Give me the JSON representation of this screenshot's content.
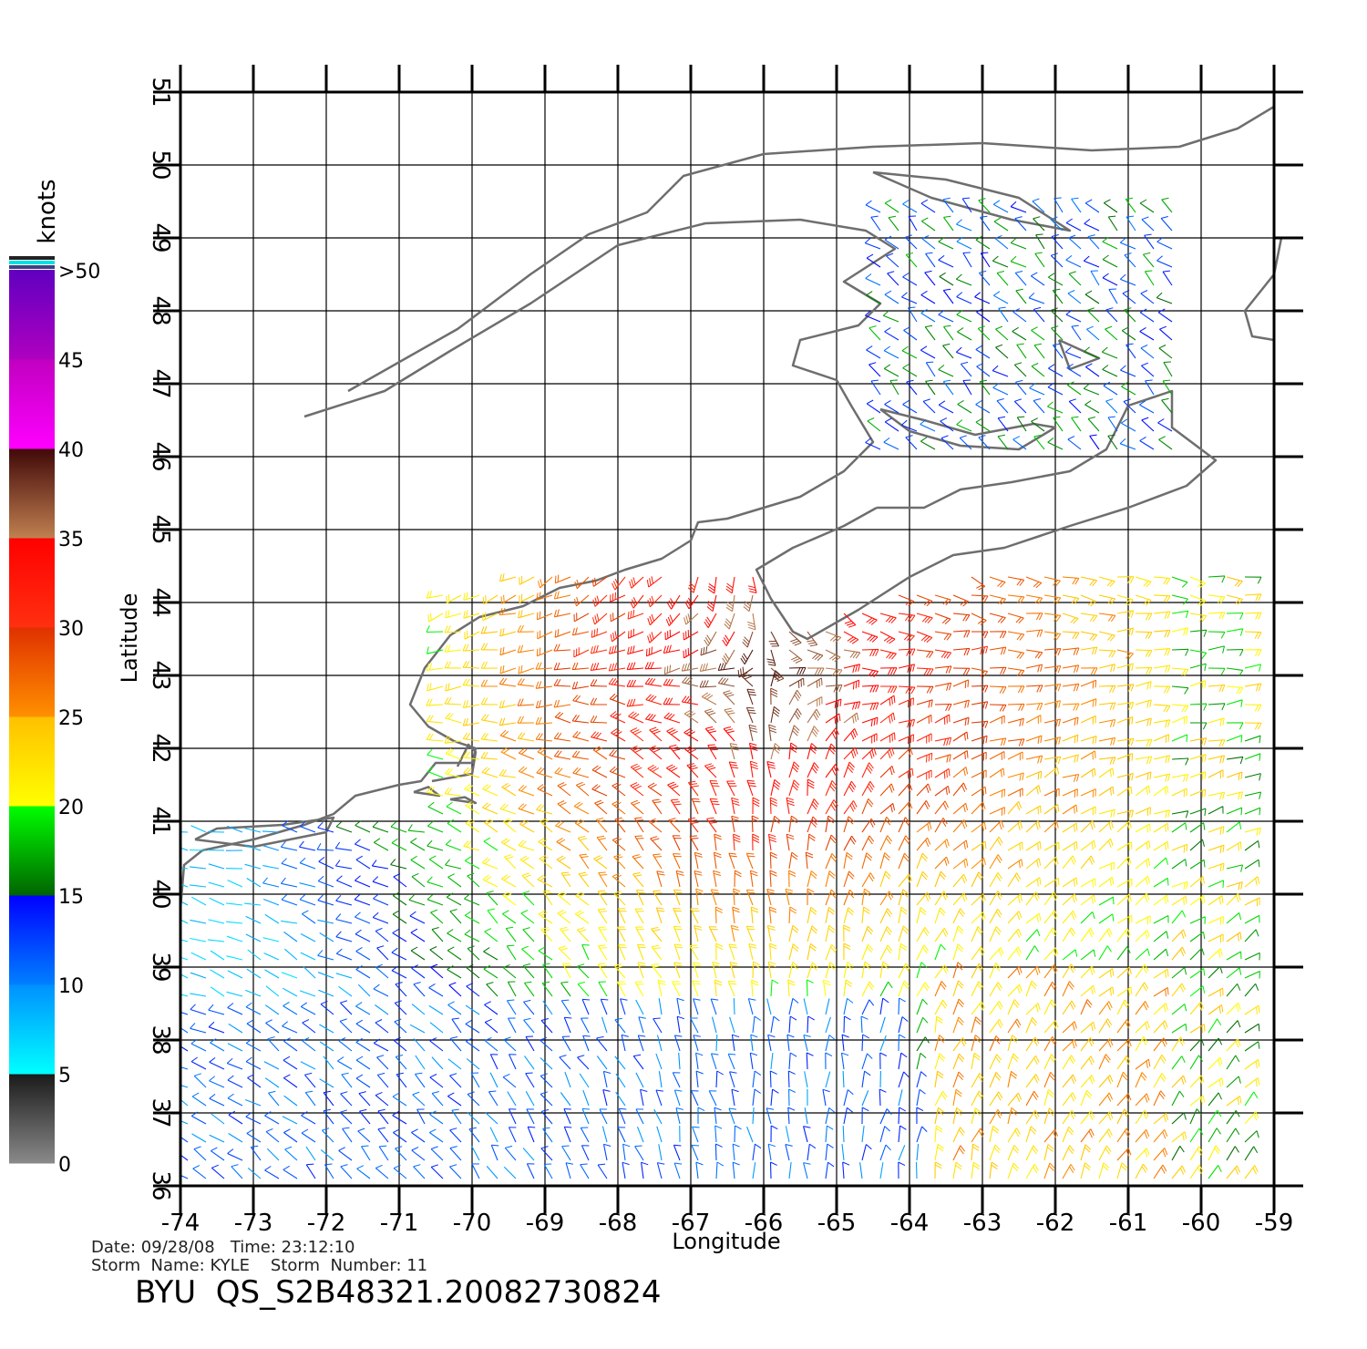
{
  "map": {
    "x_label": "Longitude",
    "y_label": "Latitude",
    "lon_ticks": [
      "-74",
      "-73",
      "-72",
      "-71",
      "-70",
      "-69",
      "-68",
      "-67",
      "-66",
      "-65",
      "-64",
      "-63",
      "-62",
      "-61",
      "-60",
      "-59"
    ],
    "lat_ticks": [
      "36",
      "37",
      "38",
      "39",
      "40",
      "41",
      "42",
      "43",
      "44",
      "45",
      "46",
      "47",
      "48",
      "49",
      "50",
      "51"
    ],
    "lon_range": [
      -74,
      -59
    ],
    "lat_range": [
      36,
      51
    ],
    "grid": true,
    "coastline_color": "#6e6e6e"
  },
  "colorbar": {
    "unit": "knots",
    "labels": [
      "0",
      "5",
      "10",
      "15",
      "20",
      "25",
      "30",
      "35",
      "40",
      "45",
      ">50"
    ],
    "bands": [
      {
        "from": 0,
        "to": 5,
        "colors": [
          "#8a8a8a",
          "#1a1a1a"
        ]
      },
      {
        "from": 5,
        "to": 10,
        "colors": [
          "#00ffff",
          "#0090ff"
        ]
      },
      {
        "from": 10,
        "to": 15,
        "colors": [
          "#0080ff",
          "#0000ff"
        ]
      },
      {
        "from": 15,
        "to": 20,
        "colors": [
          "#006400",
          "#00ff00"
        ]
      },
      {
        "from": 20,
        "to": 25,
        "colors": [
          "#ffff00",
          "#ffc000"
        ]
      },
      {
        "from": 25,
        "to": 30,
        "colors": [
          "#ff9000",
          "#e03000"
        ]
      },
      {
        "from": 30,
        "to": 35,
        "colors": [
          "#ff3010",
          "#ff0000"
        ]
      },
      {
        "from": 35,
        "to": 40,
        "colors": [
          "#c08050",
          "#400808"
        ]
      },
      {
        "from": 40,
        "to": 45,
        "colors": [
          "#ff00ff",
          "#c000c0"
        ]
      },
      {
        "from": 45,
        "to": 50,
        "colors": [
          "#b000c0",
          "#6000c0"
        ]
      }
    ]
  },
  "footer": {
    "date_line": "Date: 09/28/08   Time: 23:12:10",
    "storm_line": "Storm  Name: KYLE    Storm  Number: 11",
    "id_line": "BYU  QS_S2B48321.20082730824"
  }
}
